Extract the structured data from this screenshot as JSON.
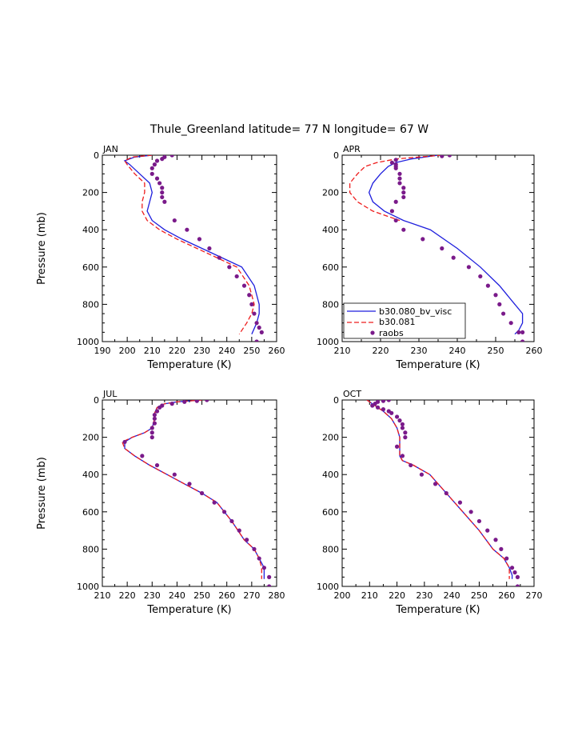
{
  "figure": {
    "title": "Thule_Greenland  latitude= 77 N longitude= 67 W"
  },
  "colors": {
    "model_visc": "#1f1fdd",
    "model_081": "#ee1c1c",
    "raobs": "#7a1a8a"
  },
  "legend": {
    "entries": [
      "b30.080_bv_visc",
      "b30.081",
      "raobs"
    ]
  },
  "chart_data": [
    {
      "type": "line",
      "panel": "JAN",
      "xlabel": "Temperature (K)",
      "ylabel": "Pressure (mb)",
      "xlim": [
        190,
        260
      ],
      "ylim": [
        1000,
        0
      ],
      "xticks": [
        190,
        200,
        210,
        220,
        230,
        240,
        250,
        260
      ],
      "yticks": [
        0,
        200,
        400,
        600,
        800,
        1000
      ],
      "series": [
        {
          "name": "b30.080_bv_visc",
          "style": "solid",
          "x": [
            210,
            203,
            199,
            201,
            205,
            209,
            210,
            209,
            208,
            210,
            215,
            222,
            230,
            238,
            246,
            251,
            253,
            253,
            252,
            250
          ],
          "y": [
            0,
            10,
            30,
            50,
            100,
            150,
            200,
            250,
            300,
            350,
            400,
            450,
            500,
            550,
            600,
            700,
            800,
            850,
            900,
            960
          ]
        },
        {
          "name": "b30.081",
          "style": "dashed",
          "x": [
            210,
            202,
            199,
            200,
            203,
            207,
            207,
            206,
            206,
            208,
            213,
            220,
            228,
            236,
            244,
            249,
            251,
            250,
            248,
            245
          ],
          "y": [
            0,
            10,
            30,
            50,
            100,
            150,
            200,
            250,
            300,
            350,
            400,
            450,
            500,
            550,
            600,
            700,
            800,
            850,
            900,
            960
          ]
        },
        {
          "name": "raobs",
          "style": "marker",
          "x": [
            218,
            215,
            214,
            212,
            211,
            210,
            210,
            212,
            213,
            214,
            214,
            214,
            215,
            219,
            224,
            229,
            233,
            237,
            241,
            244,
            247,
            249,
            250,
            251,
            252,
            253,
            254,
            252
          ],
          "y": [
            0,
            10,
            20,
            30,
            50,
            70,
            100,
            125,
            150,
            175,
            200,
            225,
            250,
            350,
            400,
            450,
            500,
            550,
            600,
            650,
            700,
            750,
            800,
            850,
            900,
            925,
            950,
            1000
          ]
        }
      ]
    },
    {
      "type": "line",
      "panel": "APR",
      "xlabel": "Temperature (K)",
      "ylabel": "",
      "xlim": [
        210,
        260
      ],
      "ylim": [
        1000,
        0
      ],
      "xticks": [
        210,
        220,
        230,
        240,
        250,
        260
      ],
      "yticks": [
        0,
        200,
        400,
        600,
        800,
        1000
      ],
      "series": [
        {
          "name": "b30.080_bv_visc",
          "style": "solid",
          "x": [
            235,
            228,
            224,
            222,
            220,
            218,
            217,
            218,
            221,
            226,
            233,
            240,
            246,
            251,
            255,
            257,
            257,
            256,
            255
          ],
          "y": [
            0,
            20,
            40,
            60,
            100,
            150,
            200,
            250,
            300,
            350,
            400,
            500,
            600,
            700,
            800,
            850,
            900,
            940,
            960
          ]
        },
        {
          "name": "b30.081",
          "style": "dashed",
          "x": [
            236,
            224,
            219,
            216,
            214,
            212,
            212,
            214,
            218,
            225
          ],
          "y": [
            0,
            20,
            40,
            60,
            100,
            150,
            200,
            250,
            300,
            350
          ]
        },
        {
          "name": "raobs",
          "style": "marker",
          "x": [
            238,
            236,
            224,
            223,
            224,
            224,
            224,
            225,
            225,
            225,
            226,
            226,
            226,
            224,
            223,
            224,
            226,
            231,
            236,
            239,
            243,
            246,
            248,
            250,
            251,
            252,
            254,
            256,
            257,
            257
          ],
          "y": [
            0,
            5,
            25,
            40,
            50,
            60,
            70,
            100,
            125,
            150,
            175,
            200,
            225,
            250,
            300,
            350,
            400,
            450,
            500,
            550,
            600,
            650,
            700,
            750,
            800,
            850,
            900,
            950,
            950,
            1000
          ]
        }
      ]
    },
    {
      "type": "line",
      "panel": "JUL",
      "xlabel": "Temperature (K)",
      "ylabel": "Pressure (mb)",
      "xlim": [
        210,
        280
      ],
      "ylim": [
        1000,
        0
      ],
      "xticks": [
        210,
        220,
        230,
        240,
        250,
        260,
        270,
        280
      ],
      "yticks": [
        0,
        200,
        400,
        600,
        800,
        1000
      ],
      "series": [
        {
          "name": "b30.080_bv_visc",
          "style": "solid",
          "x": [
            250,
            240,
            235,
            232,
            231,
            231,
            230,
            227,
            222,
            219,
            219,
            223,
            229,
            236,
            243,
            250,
            256,
            262,
            267,
            271,
            273,
            275,
            275
          ],
          "y": [
            0,
            10,
            20,
            40,
            70,
            100,
            150,
            175,
            200,
            225,
            260,
            300,
            350,
            400,
            450,
            500,
            550,
            650,
            750,
            800,
            850,
            900,
            960
          ]
        },
        {
          "name": "b30.081",
          "style": "dashed",
          "x": [
            250,
            240,
            235,
            232,
            231,
            231,
            230,
            227,
            222,
            218,
            219,
            223,
            229,
            236,
            243,
            250,
            256,
            262,
            267,
            271,
            273,
            274,
            274
          ],
          "y": [
            0,
            10,
            20,
            40,
            70,
            100,
            150,
            175,
            200,
            225,
            260,
            300,
            350,
            400,
            450,
            500,
            550,
            650,
            750,
            800,
            850,
            900,
            960
          ]
        },
        {
          "name": "raobs",
          "style": "marker",
          "x": [
            252,
            248,
            243,
            238,
            234,
            233,
            232,
            231,
            231,
            231,
            230,
            230,
            230,
            219,
            226,
            232,
            239,
            245,
            250,
            255,
            259,
            262,
            265,
            268,
            271,
            273,
            275,
            277,
            277
          ],
          "y": [
            0,
            5,
            10,
            20,
            30,
            40,
            60,
            80,
            100,
            125,
            150,
            175,
            200,
            225,
            300,
            350,
            400,
            450,
            500,
            550,
            600,
            650,
            700,
            750,
            800,
            850,
            900,
            950,
            1000
          ]
        }
      ]
    },
    {
      "type": "line",
      "panel": "OCT",
      "xlabel": "Temperature (K)",
      "ylabel": "",
      "xlim": [
        200,
        270
      ],
      "ylim": [
        1000,
        0
      ],
      "xticks": [
        200,
        210,
        220,
        230,
        240,
        250,
        260,
        270
      ],
      "yticks": [
        0,
        200,
        400,
        600,
        800,
        1000
      ],
      "series": [
        {
          "name": "b30.080_bv_visc",
          "style": "solid",
          "x": [
            209,
            212,
            215,
            218,
            220,
            221,
            221,
            221,
            222,
            226,
            232,
            238,
            244,
            250,
            255,
            259,
            261,
            262,
            262
          ],
          "y": [
            0,
            30,
            60,
            100,
            150,
            200,
            250,
            300,
            325,
            350,
            400,
            500,
            600,
            700,
            800,
            850,
            900,
            940,
            960
          ]
        },
        {
          "name": "b30.081",
          "style": "dashed",
          "x": [
            209,
            212,
            215,
            218,
            220,
            221,
            221,
            221,
            222,
            226,
            232,
            238,
            244,
            250,
            255,
            259,
            261,
            261,
            261
          ],
          "y": [
            0,
            30,
            60,
            100,
            150,
            200,
            250,
            300,
            325,
            350,
            400,
            500,
            600,
            700,
            800,
            850,
            900,
            940,
            960
          ]
        },
        {
          "name": "raobs",
          "style": "marker",
          "x": [
            217,
            215,
            213,
            212,
            211,
            213,
            215,
            217,
            218,
            220,
            221,
            222,
            222,
            223,
            223,
            220,
            222,
            225,
            229,
            234,
            238,
            243,
            247,
            250,
            253,
            256,
            258,
            260,
            262,
            263,
            264,
            264
          ],
          "y": [
            0,
            5,
            10,
            20,
            30,
            40,
            50,
            60,
            70,
            90,
            110,
            130,
            150,
            175,
            200,
            250,
            300,
            350,
            400,
            450,
            500,
            550,
            600,
            650,
            700,
            750,
            800,
            850,
            900,
            925,
            950,
            1000
          ]
        }
      ]
    }
  ]
}
